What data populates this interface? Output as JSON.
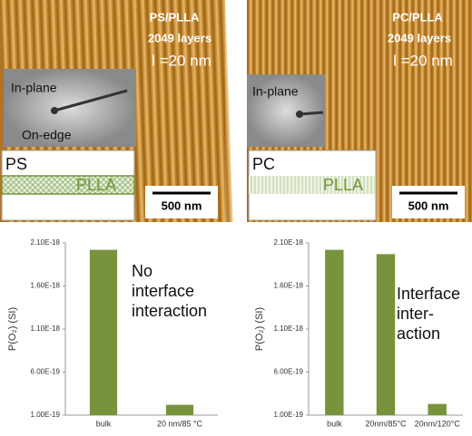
{
  "panels": [
    {
      "title": "PS/PLLA",
      "layers": "2049 layers",
      "spacing": "l =20 nm",
      "inset_labels": [
        "In-plane",
        "On-edge"
      ],
      "layer_top": "PS",
      "layer_bottom": "PLLA",
      "scale": "500 nm"
    },
    {
      "title": "PC/PLLA",
      "layers": "2049 layers",
      "spacing": "l =20 nm",
      "inset_labels": [
        "In-plane"
      ],
      "layer_top": "PC",
      "layer_bottom": "PLLA",
      "scale": "500 nm"
    }
  ],
  "chart_data": [
    {
      "type": "bar",
      "ylabel": "P(O₂) (SI)",
      "categories": [
        "bulk",
        "20 nm/85 °C"
      ],
      "values": [
        2.02e-18,
        2.2e-19
      ],
      "color": "#77933c",
      "ylim": [
        1e-19,
        2.1e-18
      ],
      "yticks": [
        {
          "value": 1e-19,
          "label": "1.00E-19"
        },
        {
          "value": 6e-19,
          "label": "6.00E-19"
        },
        {
          "value": 1.1e-18,
          "label": "1.10E-18"
        },
        {
          "value": 1.6e-18,
          "label": "1.60E-18"
        },
        {
          "value": 2.1e-18,
          "label": "2.10E-18"
        }
      ],
      "annotation": [
        "No",
        "interface",
        "interaction"
      ]
    },
    {
      "type": "bar",
      "ylabel": "P(O₂) (SI)",
      "categories": [
        "bulk",
        "20nm/85°C",
        "20nm/120°C"
      ],
      "values": [
        2.02e-18,
        1.97e-18,
        2.3e-19
      ],
      "color": "#77933c",
      "ylim": [
        1e-19,
        2.1e-18
      ],
      "yticks": [
        {
          "value": 1e-19,
          "label": "1.00E-19"
        },
        {
          "value": 6e-19,
          "label": "6.00E-19"
        },
        {
          "value": 1.1e-18,
          "label": "1.10E-18"
        },
        {
          "value": 1.6e-18,
          "label": "1.60E-18"
        },
        {
          "value": 2.1e-18,
          "label": "2.10E-18"
        }
      ],
      "annotation": [
        "Interface",
        "inter-",
        "action"
      ]
    }
  ]
}
